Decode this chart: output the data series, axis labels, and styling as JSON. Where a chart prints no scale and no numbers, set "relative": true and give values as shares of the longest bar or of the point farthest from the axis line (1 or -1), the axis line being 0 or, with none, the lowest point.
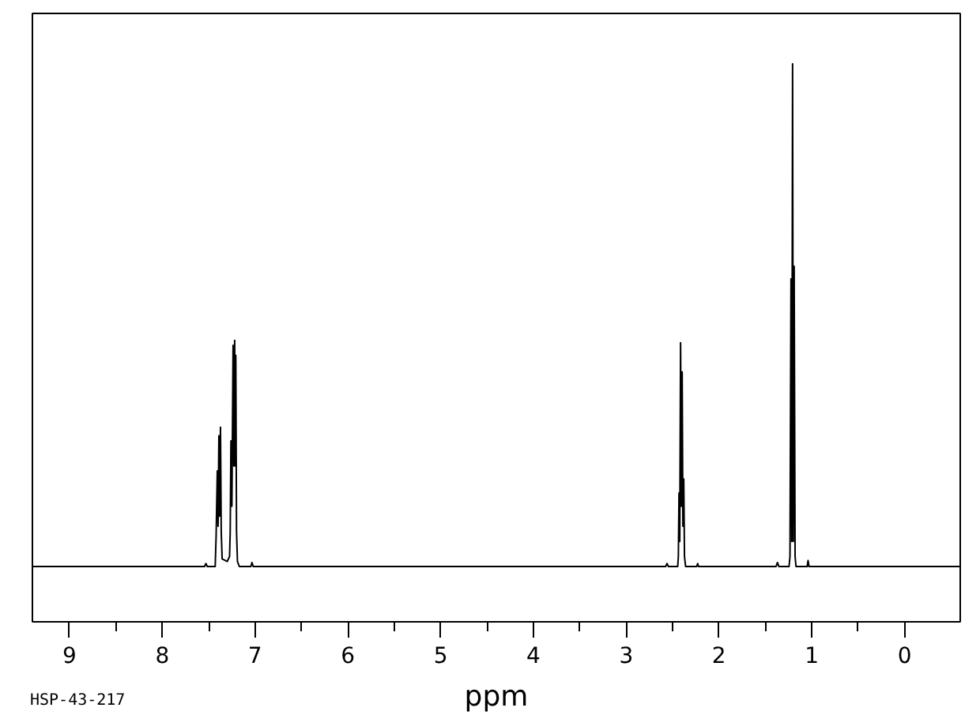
{
  "chart_data": {
    "type": "line",
    "relative": true,
    "xlabel": "ppm",
    "annotations": [
      "HSP-43-217"
    ],
    "xlim": [
      9.4,
      -0.6
    ],
    "xticks": [
      9,
      8,
      7,
      6,
      5,
      4,
      3,
      2,
      1,
      0
    ],
    "series": [
      {
        "color": "#000000",
        "x": [
          9.4,
          7.545,
          7.53,
          7.515,
          7.43,
          7.42,
          7.407,
          7.399,
          7.39,
          7.382,
          7.373,
          7.365,
          7.355,
          7.3,
          7.275,
          7.268,
          7.26,
          7.25,
          7.237,
          7.229,
          7.22,
          7.214,
          7.208,
          7.2,
          7.19,
          7.17,
          7.045,
          7.034,
          7.02,
          2.575,
          2.56,
          2.545,
          2.445,
          2.438,
          2.431,
          2.423,
          2.414,
          2.406,
          2.397,
          2.389,
          2.38,
          2.372,
          2.36,
          2.24,
          2.23,
          2.22,
          1.385,
          1.37,
          1.355,
          1.245,
          1.235,
          1.224,
          1.216,
          1.207,
          1.199,
          1.19,
          1.18,
          1.17,
          1.05,
          1.04,
          1.03,
          -0.6
        ],
        "values": [
          0,
          0,
          0.006,
          0,
          0,
          0.06,
          0.19,
          0.08,
          0.26,
          0.1,
          0.277,
          0.07,
          0.015,
          0.01,
          0.02,
          0.07,
          0.25,
          0.12,
          0.44,
          0.2,
          0.45,
          0.2,
          0.42,
          0.07,
          0.01,
          0,
          0,
          0.008,
          0,
          0,
          0.006,
          0,
          0,
          0.02,
          0.146,
          0.05,
          0.445,
          0.12,
          0.387,
          0.08,
          0.174,
          0.02,
          0,
          0,
          0.006,
          0,
          0,
          0.008,
          0,
          0,
          0.02,
          0.572,
          0.05,
          1.0,
          0.05,
          0.597,
          0.02,
          0,
          0,
          0.012,
          0,
          0
        ]
      }
    ]
  }
}
